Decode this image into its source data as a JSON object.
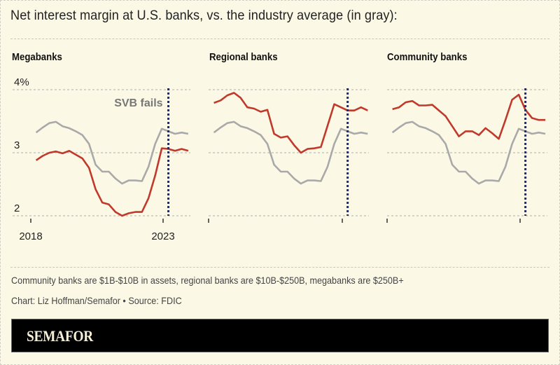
{
  "title": "Net interest margin at U.S. banks, vs. the industry average (in gray):",
  "notes": {
    "definition": "Community banks are $1B-$10B in assets, regional banks are $10B-$250B, megabanks are $250B+",
    "credit": "Chart: Liz Hoffman/Semafor • Source: FDIC"
  },
  "brand": "SEMAFOR",
  "colors": {
    "background": "#fbf9e6",
    "bank": "#c0392b",
    "industry": "#a9a9a9",
    "event": "#1f2a6b"
  },
  "chart_data": [
    {
      "type": "line",
      "title": "Megabanks",
      "ylabel": "",
      "yticks": [
        "4%",
        "3",
        "2"
      ],
      "ylim": [
        2,
        4
      ],
      "xticks": [
        "2018",
        "2023"
      ],
      "xlim": [
        2018,
        2024.15
      ],
      "annotation": {
        "label": "SVB fails",
        "x": 2023.2
      },
      "x": [
        2018.2,
        2018.45,
        2018.7,
        2018.95,
        2019.2,
        2019.45,
        2019.7,
        2019.95,
        2020.2,
        2020.45,
        2020.7,
        2020.95,
        2021.2,
        2021.45,
        2021.7,
        2021.95,
        2022.2,
        2022.45,
        2022.7,
        2022.95,
        2023.2,
        2023.45,
        2023.7,
        2023.95
      ],
      "series": [
        {
          "name": "Industry average",
          "values": [
            3.32,
            3.4,
            3.47,
            3.49,
            3.42,
            3.39,
            3.34,
            3.28,
            3.14,
            2.81,
            2.7,
            2.7,
            2.59,
            2.51,
            2.56,
            2.56,
            2.55,
            2.78,
            3.14,
            3.38,
            3.34,
            3.3,
            3.32,
            3.3
          ]
        },
        {
          "name": "Megabanks",
          "values": [
            2.88,
            2.95,
            3.0,
            3.02,
            2.99,
            3.03,
            2.97,
            2.91,
            2.76,
            2.42,
            2.21,
            2.18,
            2.06,
            2.0,
            2.04,
            2.06,
            2.06,
            2.28,
            2.64,
            3.07,
            3.06,
            3.03,
            3.06,
            3.03
          ]
        }
      ]
    },
    {
      "type": "line",
      "title": "Regional banks",
      "ylim": [
        2,
        4
      ],
      "xlim": [
        2018,
        2024.15
      ],
      "annotation": {
        "label": "",
        "x": 2023.2
      },
      "x": [
        2018.2,
        2018.45,
        2018.7,
        2018.95,
        2019.2,
        2019.45,
        2019.7,
        2019.95,
        2020.2,
        2020.45,
        2020.7,
        2020.95,
        2021.2,
        2021.45,
        2021.7,
        2021.95,
        2022.2,
        2022.45,
        2022.7,
        2022.95,
        2023.2,
        2023.45,
        2023.7,
        2023.95
      ],
      "series": [
        {
          "name": "Industry average",
          "values": [
            3.32,
            3.4,
            3.47,
            3.49,
            3.42,
            3.39,
            3.34,
            3.28,
            3.14,
            2.81,
            2.7,
            2.7,
            2.59,
            2.51,
            2.56,
            2.56,
            2.55,
            2.78,
            3.14,
            3.38,
            3.34,
            3.3,
            3.32,
            3.3
          ]
        },
        {
          "name": "Regional banks",
          "values": [
            3.79,
            3.83,
            3.91,
            3.95,
            3.87,
            3.72,
            3.7,
            3.65,
            3.68,
            3.3,
            3.24,
            3.26,
            3.12,
            3.0,
            3.06,
            3.07,
            3.09,
            3.43,
            3.77,
            3.72,
            3.67,
            3.67,
            3.72,
            3.67
          ]
        }
      ]
    },
    {
      "type": "line",
      "title": "Community banks",
      "ylim": [
        2,
        4
      ],
      "xlim": [
        2018,
        2024.15
      ],
      "annotation": {
        "label": "",
        "x": 2023.2
      },
      "x": [
        2018.2,
        2018.45,
        2018.7,
        2018.95,
        2019.2,
        2019.45,
        2019.7,
        2019.95,
        2020.2,
        2020.45,
        2020.7,
        2020.95,
        2021.2,
        2021.45,
        2021.7,
        2021.95,
        2022.2,
        2022.45,
        2022.7,
        2022.95,
        2023.2,
        2023.45,
        2023.7,
        2023.95
      ],
      "series": [
        {
          "name": "Industry average",
          "values": [
            3.32,
            3.4,
            3.47,
            3.49,
            3.42,
            3.39,
            3.34,
            3.28,
            3.14,
            2.81,
            2.7,
            2.7,
            2.59,
            2.51,
            2.56,
            2.56,
            2.55,
            2.78,
            3.14,
            3.38,
            3.34,
            3.3,
            3.32,
            3.3
          ]
        },
        {
          "name": "Community banks",
          "values": [
            3.69,
            3.72,
            3.8,
            3.82,
            3.75,
            3.75,
            3.76,
            3.67,
            3.58,
            3.42,
            3.26,
            3.34,
            3.34,
            3.28,
            3.39,
            3.31,
            3.22,
            3.52,
            3.84,
            3.92,
            3.68,
            3.55,
            3.52,
            3.52
          ]
        }
      ]
    }
  ]
}
